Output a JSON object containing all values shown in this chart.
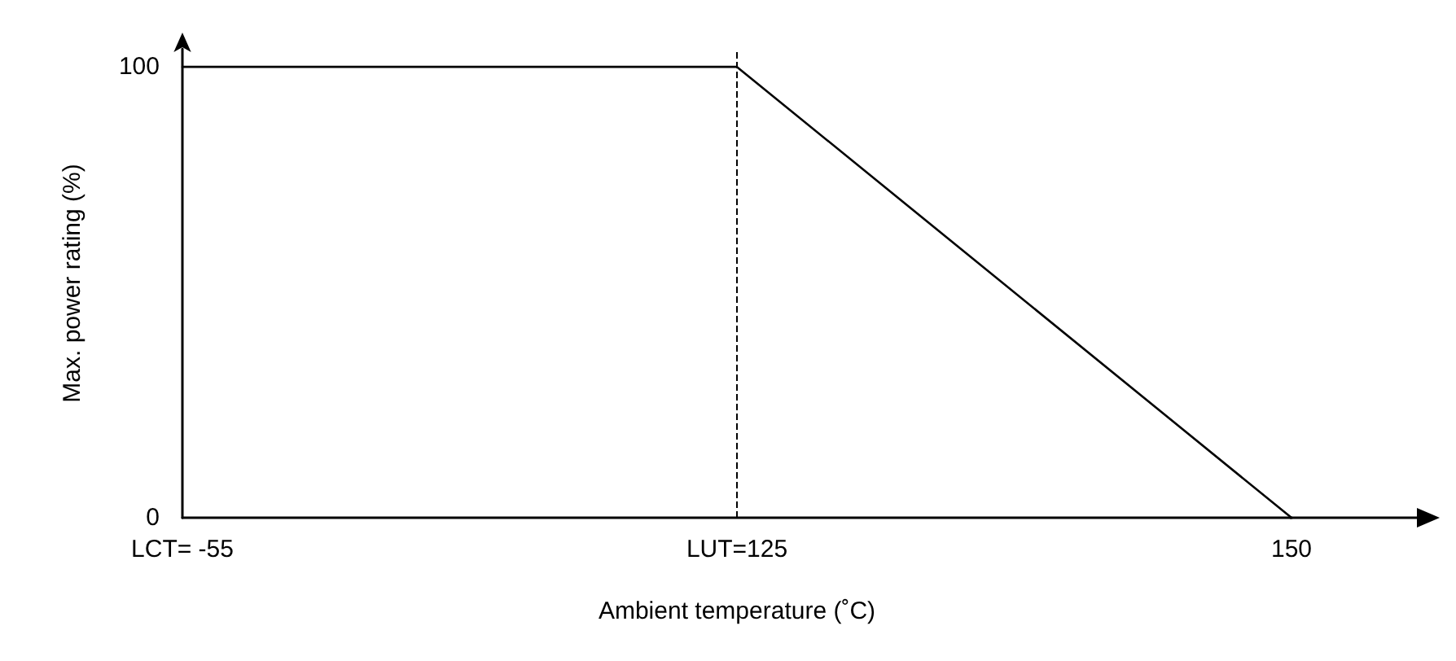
{
  "chart_data": {
    "type": "line",
    "xlabel": "Ambient temperature (˚C)",
    "ylabel": "Max. power rating (%)",
    "categories": [
      "LCT= -55",
      "LUT=125",
      "150"
    ],
    "series": [
      {
        "color": "#000000",
        "values": [
          100,
          100,
          0
        ]
      }
    ],
    "ylim": [
      0,
      104
    ],
    "yticks": [
      0,
      100
    ],
    "marker": "none",
    "line_style": "solid",
    "ref_lines": [
      {
        "axis": "x",
        "value": "LUT=125",
        "color": "#000000",
        "line_style": "dashed"
      }
    ]
  }
}
